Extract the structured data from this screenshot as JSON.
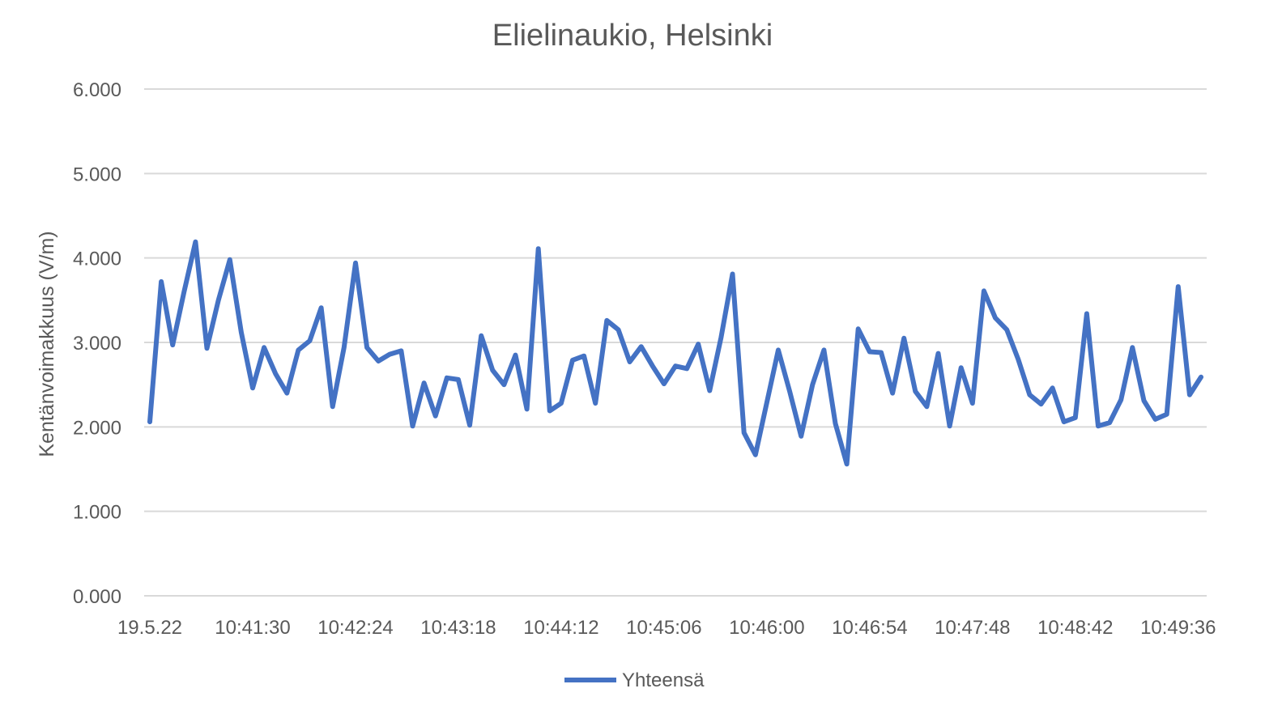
{
  "chart_data": {
    "type": "line",
    "title": "Elielinaukio, Helsinki",
    "xlabel": "",
    "ylabel": "Kentänvoimakkuus (V/m)",
    "ylim": [
      0,
      6
    ],
    "yticks": [
      "0.000",
      "1.000",
      "2.000",
      "3.000",
      "4.000",
      "5.000",
      "6.000"
    ],
    "xtick_labels": [
      "19.5.22",
      "10:41:30",
      "10:42:24",
      "10:43:18",
      "10:44:12",
      "10:45:06",
      "10:46:00",
      "10:46:54",
      "10:47:48",
      "10:48:42",
      "10:49:36"
    ],
    "xtick_index": [
      0,
      9,
      18,
      27,
      36,
      45,
      54,
      63,
      72,
      81,
      90
    ],
    "grid": true,
    "legend_position": "bottom",
    "series": [
      {
        "name": "Yhteensä",
        "color": "#4472c4",
        "values": [
          2.06,
          3.72,
          2.97,
          3.6,
          4.19,
          2.93,
          3.5,
          3.98,
          3.12,
          2.46,
          2.94,
          2.63,
          2.4,
          2.91,
          3.02,
          3.41,
          2.24,
          2.94,
          3.94,
          2.94,
          2.78,
          2.86,
          2.9,
          2.01,
          2.52,
          2.13,
          2.58,
          2.56,
          2.02,
          3.08,
          2.67,
          2.5,
          2.85,
          2.21,
          4.11,
          2.19,
          2.28,
          2.79,
          2.84,
          2.28,
          3.26,
          3.15,
          2.77,
          2.95,
          2.72,
          2.51,
          2.72,
          2.69,
          2.98,
          2.43,
          3.06,
          3.81,
          1.93,
          1.67,
          2.29,
          2.91,
          2.42,
          1.89,
          2.5,
          2.91,
          2.04,
          1.56,
          3.16,
          2.89,
          2.88,
          2.4,
          3.05,
          2.42,
          2.24,
          2.87,
          2.01,
          2.7,
          2.28,
          3.61,
          3.29,
          3.15,
          2.8,
          2.38,
          2.27,
          2.46,
          2.06,
          2.11,
          3.34,
          2.01,
          2.05,
          2.32,
          2.94,
          2.31,
          2.09,
          2.15,
          3.66,
          2.38,
          2.59
        ]
      }
    ]
  }
}
